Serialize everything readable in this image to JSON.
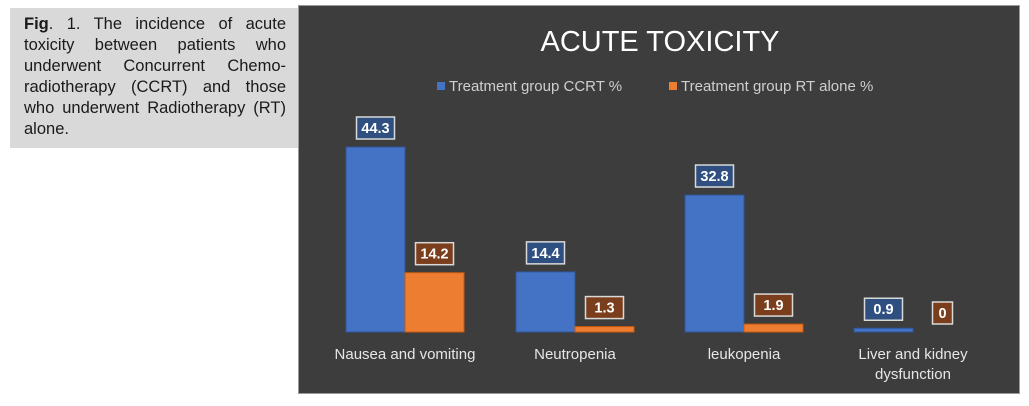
{
  "caption": {
    "fig_label": "Fig",
    "number_text": ". 1.",
    "text": "The incidence of acute toxicity between patients who underwent Concurrent Chemo-radiotherapy (CCRT) and those who underwent Radiotherapy (RT) alone."
  },
  "chart_data": {
    "type": "bar",
    "title": "ACUTE TOXICITY",
    "categories": [
      [
        "Nausea and vomiting"
      ],
      [
        "Neutropenia"
      ],
      [
        "leukopenia"
      ],
      [
        "Liver and kidney",
        "dysfunction"
      ]
    ],
    "series": [
      {
        "name": "Treatment group CCRT %",
        "values": [
          44.3,
          14.4,
          32.8,
          0.9
        ],
        "color": "#4472c4",
        "label_bg": "#2f4f80"
      },
      {
        "name": "Treatment group RT alone %",
        "values": [
          14.2,
          1.3,
          1.9,
          0
        ],
        "color": "#ed7d31",
        "label_bg": "#7a3e1c"
      }
    ],
    "ylim": [
      0,
      50
    ],
    "grid": false,
    "axis_visible": false,
    "data_labels": true,
    "legend_position": "top"
  }
}
